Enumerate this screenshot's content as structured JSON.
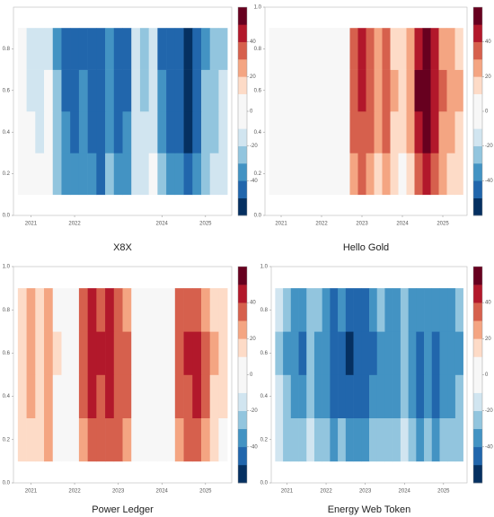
{
  "chart_data": [
    {
      "type": "heatmap",
      "title": "X8X",
      "x": [
        2020.8,
        2021.0,
        2021.2,
        2021.4,
        2021.6,
        2021.8,
        2022.0,
        2022.2,
        2022.4,
        2022.6,
        2022.8,
        2023.0,
        2023.2,
        2023.4,
        2023.6,
        2023.8,
        2024.0,
        2024.2,
        2024.4,
        2024.6,
        2024.8,
        2025.0,
        2025.2,
        2025.4
      ],
      "y": [
        0.2,
        0.4,
        0.6,
        0.8
      ],
      "z": [
        [
          -2,
          -5,
          -8,
          -4,
          -22,
          -35,
          -38,
          -32,
          -40,
          -42,
          -30,
          -36,
          -34,
          -12,
          -15,
          -8,
          -30,
          -36,
          -40,
          -44,
          -36,
          -22,
          -18,
          -14
        ],
        [
          -6,
          -10,
          -12,
          -8,
          -28,
          -40,
          -44,
          -38,
          -46,
          -48,
          -36,
          -42,
          -40,
          -16,
          -20,
          -12,
          -38,
          -44,
          -48,
          -52,
          -44,
          -28,
          -22,
          -18
        ],
        [
          -8,
          -12,
          -15,
          -10,
          -30,
          -42,
          -46,
          -40,
          -48,
          -50,
          -38,
          -45,
          -42,
          -18,
          -22,
          -15,
          -40,
          -45,
          -50,
          -54,
          -46,
          -30,
          -25,
          -20
        ],
        [
          -10,
          -14,
          -16,
          -12,
          -32,
          -44,
          -46,
          -42,
          -48,
          -50,
          -40,
          -46,
          -44,
          -20,
          -24,
          -18,
          -42,
          -46,
          -48,
          -52,
          -46,
          -32,
          -26,
          -22
        ]
      ],
      "xlim": [
        2020.6,
        2025.6
      ],
      "ylim": [
        0,
        1
      ],
      "xticks": [
        2021,
        2022,
        2024,
        2025
      ],
      "yticks": [
        {
          "value": 0,
          "label": "0.0"
        },
        0.2,
        0.4,
        0.6,
        0.8
      ],
      "clim": [
        -60,
        60
      ],
      "cticks": [
        -40,
        -20,
        0,
        20,
        40
      ],
      "colorscale": [
        "#053061",
        "#2166ac",
        "#4393c3",
        "#92c5de",
        "#d1e5f0",
        "#f7f7f7",
        "#f7f7f7",
        "#fddbc7",
        "#f4a582",
        "#d6604d",
        "#b2182b",
        "#67001f"
      ]
    },
    {
      "type": "heatmap",
      "title": "Hello Gold",
      "x": [
        2020.8,
        2021.0,
        2021.2,
        2021.4,
        2021.6,
        2021.8,
        2022.0,
        2022.2,
        2022.4,
        2022.6,
        2022.8,
        2023.0,
        2023.2,
        2023.4,
        2023.6,
        2023.8,
        2024.0,
        2024.2,
        2024.4,
        2024.6,
        2024.8,
        2025.0,
        2025.2,
        2025.4
      ],
      "y": [
        0.2,
        0.4,
        0.6,
        0.8
      ],
      "z": [
        [
          -8,
          -6,
          -4,
          -10,
          -7,
          -5,
          -2,
          -8,
          -6,
          0,
          22,
          30,
          26,
          18,
          28,
          12,
          8,
          14,
          36,
          44,
          34,
          20,
          16,
          12
        ],
        [
          -6,
          -4,
          -2,
          -8,
          -5,
          -3,
          0,
          -6,
          -4,
          2,
          30,
          38,
          34,
          26,
          36,
          18,
          14,
          20,
          46,
          54,
          42,
          28,
          22,
          18
        ],
        [
          -5,
          -3,
          -1,
          -7,
          -4,
          -2,
          1,
          -5,
          -3,
          3,
          34,
          42,
          38,
          28,
          38,
          20,
          16,
          22,
          50,
          58,
          46,
          30,
          24,
          20
        ],
        [
          -4,
          -2,
          0,
          -6,
          -3,
          -1,
          2,
          -4,
          -2,
          4,
          32,
          40,
          36,
          26,
          34,
          18,
          14,
          20,
          48,
          56,
          44,
          28,
          22,
          18
        ]
      ],
      "xlim": [
        2020.6,
        2025.6
      ],
      "ylim": [
        0,
        1
      ],
      "xticks": [
        2021,
        2022,
        2023,
        2024,
        2025
      ],
      "yticks": [
        {
          "value": 0,
          "label": "0.0"
        },
        0.2,
        0.4,
        0.6,
        0.8,
        {
          "value": 1,
          "label": "1.0"
        }
      ],
      "clim": [
        -60,
        60
      ],
      "cticks": [
        -40,
        -20,
        0,
        20,
        40
      ],
      "colorscale": [
        "#053061",
        "#2166ac",
        "#4393c3",
        "#92c5de",
        "#d1e5f0",
        "#f7f7f7",
        "#f7f7f7",
        "#fddbc7",
        "#f4a582",
        "#d6604d",
        "#b2182b",
        "#67001f"
      ]
    },
    {
      "type": "heatmap",
      "title": "Power Ledger",
      "x": [
        2020.8,
        2021.0,
        2021.2,
        2021.4,
        2021.6,
        2021.8,
        2022.0,
        2022.2,
        2022.4,
        2022.6,
        2022.8,
        2023.0,
        2023.2,
        2023.4,
        2023.6,
        2023.8,
        2024.0,
        2024.2,
        2024.4,
        2024.6,
        2024.8,
        2025.0,
        2025.2,
        2025.4
      ],
      "y": [
        0.2,
        0.4,
        0.6,
        0.8
      ],
      "z": [
        [
          12,
          18,
          10,
          20,
          6,
          2,
          -4,
          28,
          36,
          32,
          38,
          30,
          24,
          -6,
          -2,
          4,
          -8,
          -2,
          26,
          30,
          34,
          24,
          14,
          8
        ],
        [
          16,
          22,
          14,
          24,
          8,
          4,
          -2,
          34,
          42,
          38,
          44,
          36,
          30,
          -4,
          0,
          6,
          -6,
          0,
          32,
          38,
          40,
          30,
          18,
          10
        ],
        [
          18,
          24,
          16,
          26,
          10,
          6,
          0,
          36,
          44,
          40,
          46,
          38,
          32,
          -2,
          2,
          8,
          -4,
          2,
          34,
          40,
          42,
          32,
          20,
          12
        ],
        [
          14,
          20,
          12,
          22,
          8,
          4,
          -2,
          32,
          40,
          36,
          42,
          34,
          28,
          -4,
          0,
          6,
          -6,
          0,
          30,
          36,
          38,
          28,
          16,
          10
        ]
      ],
      "xlim": [
        2020.6,
        2025.6
      ],
      "ylim": [
        0,
        1
      ],
      "xticks": [
        2021,
        2022,
        2023,
        2024,
        2025
      ],
      "yticks": [
        {
          "value": 0,
          "label": "0.0"
        },
        0.2,
        0.4,
        0.6,
        0.8,
        {
          "value": 1,
          "label": "1.0"
        }
      ],
      "clim": [
        -60,
        60
      ],
      "cticks": [
        -40,
        -20,
        0,
        20,
        40
      ],
      "colorscale": [
        "#053061",
        "#2166ac",
        "#4393c3",
        "#92c5de",
        "#d1e5f0",
        "#f7f7f7",
        "#f7f7f7",
        "#fddbc7",
        "#f4a582",
        "#d6604d",
        "#b2182b",
        "#67001f"
      ]
    },
    {
      "type": "heatmap",
      "title": "Energy Web Token",
      "x": [
        2020.8,
        2021.0,
        2021.2,
        2021.4,
        2021.6,
        2021.8,
        2022.0,
        2022.2,
        2022.4,
        2022.6,
        2022.8,
        2023.0,
        2023.2,
        2023.4,
        2023.6,
        2023.8,
        2024.0,
        2024.2,
        2024.4,
        2024.6,
        2024.8,
        2025.0,
        2025.2,
        2025.4
      ],
      "y": [
        0.2,
        0.4,
        0.6,
        0.8
      ],
      "z": [
        [
          -14,
          -22,
          -26,
          -30,
          -18,
          -24,
          -28,
          -32,
          -30,
          -38,
          -36,
          -34,
          -30,
          -24,
          -30,
          -26,
          -20,
          -28,
          -32,
          -26,
          -34,
          -30,
          -26,
          -22
        ],
        [
          -20,
          -30,
          -34,
          -40,
          -26,
          -32,
          -38,
          -44,
          -42,
          -50,
          -48,
          -44,
          -40,
          -32,
          -38,
          -34,
          -28,
          -36,
          -42,
          -34,
          -42,
          -38,
          -34,
          -30
        ],
        [
          -22,
          -32,
          -36,
          -42,
          -28,
          -34,
          -40,
          -46,
          -44,
          -52,
          -50,
          -46,
          -42,
          -34,
          -40,
          -36,
          -30,
          -38,
          -44,
          -36,
          -44,
          -40,
          -36,
          -32
        ],
        [
          -18,
          -28,
          -32,
          -38,
          -24,
          -30,
          -36,
          -42,
          -40,
          -48,
          -46,
          -42,
          -38,
          -30,
          -36,
          -32,
          -26,
          -34,
          -40,
          -32,
          -40,
          -36,
          -32,
          -28
        ]
      ],
      "xlim": [
        2020.6,
        2025.6
      ],
      "ylim": [
        0,
        1
      ],
      "xticks": [
        2021,
        2022,
        2023,
        2024,
        2025
      ],
      "yticks": [
        {
          "value": 0,
          "label": "0.0"
        },
        0.2,
        0.4,
        0.6,
        0.8,
        {
          "value": 1,
          "label": "1.0"
        }
      ],
      "clim": [
        -60,
        60
      ],
      "cticks": [
        -40,
        -20,
        0,
        20,
        40
      ],
      "colorscale": [
        "#053061",
        "#2166ac",
        "#4393c3",
        "#92c5de",
        "#d1e5f0",
        "#f7f7f7",
        "#f7f7f7",
        "#fddbc7",
        "#f4a582",
        "#d6604d",
        "#b2182b",
        "#67001f"
      ]
    }
  ]
}
